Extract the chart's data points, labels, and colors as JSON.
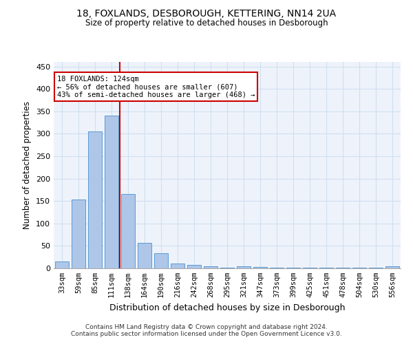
{
  "title1": "18, FOXLANDS, DESBOROUGH, KETTERING, NN14 2UA",
  "title2": "Size of property relative to detached houses in Desborough",
  "xlabel": "Distribution of detached houses by size in Desborough",
  "ylabel": "Number of detached properties",
  "categories": [
    "33sqm",
    "59sqm",
    "85sqm",
    "111sqm",
    "138sqm",
    "164sqm",
    "190sqm",
    "216sqm",
    "242sqm",
    "268sqm",
    "295sqm",
    "321sqm",
    "347sqm",
    "373sqm",
    "399sqm",
    "425sqm",
    "451sqm",
    "478sqm",
    "504sqm",
    "530sqm",
    "556sqm"
  ],
  "values": [
    15,
    153,
    305,
    340,
    165,
    57,
    33,
    10,
    8,
    5,
    2,
    5,
    3,
    2,
    2,
    1,
    1,
    1,
    1,
    1,
    4
  ],
  "bar_color": "#aec6e8",
  "bar_edge_color": "#5b9bd5",
  "grid_color": "#d0dff0",
  "bg_color": "#eef3fb",
  "red_line_x": 3.5,
  "annotation_title": "18 FOXLANDS: 124sqm",
  "annotation_line1": "← 56% of detached houses are smaller (607)",
  "annotation_line2": "43% of semi-detached houses are larger (468) →",
  "annotation_box_color": "#ffffff",
  "annotation_box_edge": "#cc0000",
  "red_line_color": "#cc0000",
  "footer1": "Contains HM Land Registry data © Crown copyright and database right 2024.",
  "footer2": "Contains public sector information licensed under the Open Government Licence v3.0.",
  "ylim": [
    0,
    460
  ],
  "yticks": [
    0,
    50,
    100,
    150,
    200,
    250,
    300,
    350,
    400,
    450
  ]
}
